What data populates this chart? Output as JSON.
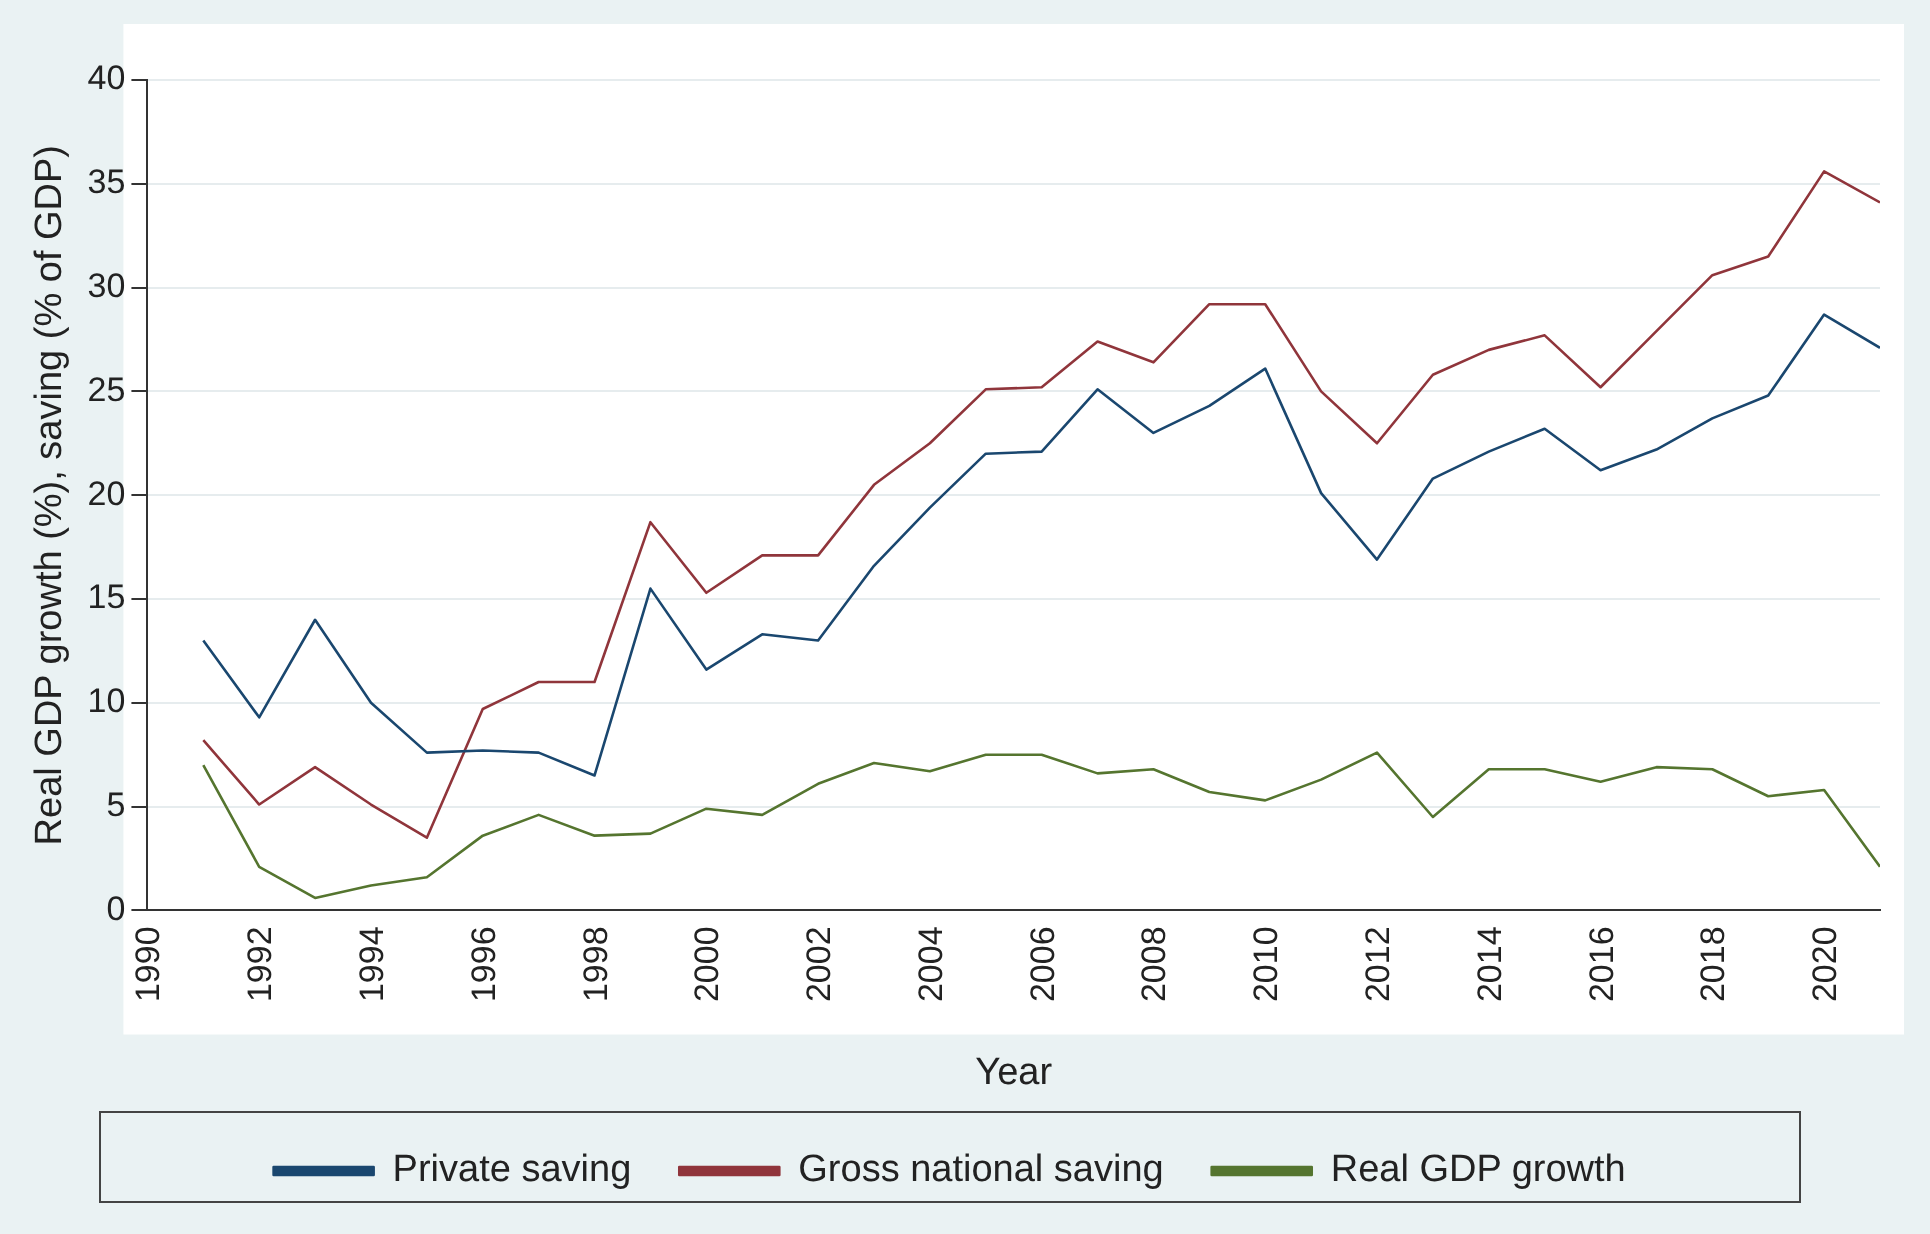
{
  "chart_data": {
    "type": "line",
    "xlabel": "Year",
    "ylabel": "Real GDP growth (%), saving (% of GDP)",
    "x": [
      1991,
      1992,
      1993,
      1994,
      1995,
      1996,
      1997,
      1998,
      1999,
      2000,
      2001,
      2002,
      2003,
      2004,
      2005,
      2006,
      2007,
      2008,
      2009,
      2010,
      2011,
      2012,
      2013,
      2014,
      2015,
      2016,
      2017,
      2018,
      2019,
      2020,
      2021
    ],
    "series": [
      {
        "name": "Private saving",
        "color": "#1a476f",
        "values": [
          13.0,
          9.3,
          14.0,
          10.0,
          7.6,
          7.7,
          7.6,
          6.5,
          15.5,
          11.6,
          13.3,
          13.0,
          16.6,
          19.4,
          22.0,
          22.1,
          25.1,
          23.0,
          24.3,
          26.1,
          20.1,
          16.9,
          20.8,
          22.1,
          23.2,
          21.2,
          22.2,
          23.7,
          24.8,
          28.7,
          27.1
        ]
      },
      {
        "name": "Gross national saving",
        "color": "#90353b",
        "values": [
          8.2,
          5.1,
          6.9,
          5.1,
          3.5,
          9.7,
          11.0,
          11.0,
          18.7,
          15.3,
          17.1,
          17.1,
          20.5,
          22.5,
          25.1,
          25.2,
          27.4,
          26.4,
          29.2,
          29.2,
          25.0,
          22.5,
          25.8,
          27.0,
          27.7,
          25.2,
          27.9,
          30.6,
          31.5,
          35.6,
          34.1
        ]
      },
      {
        "name": "Real GDP growth",
        "color": "#55752f",
        "values": [
          7.0,
          2.1,
          0.6,
          1.2,
          1.6,
          3.6,
          4.6,
          3.6,
          3.7,
          4.9,
          4.6,
          6.1,
          7.1,
          6.7,
          7.5,
          7.5,
          6.6,
          6.8,
          5.7,
          5.3,
          6.3,
          7.6,
          4.5,
          6.8,
          6.8,
          6.2,
          6.9,
          6.8,
          5.5,
          5.8,
          2.1
        ]
      }
    ],
    "xlim": [
      1990,
      2021
    ],
    "xticks": [
      1990,
      1992,
      1994,
      1996,
      1998,
      2000,
      2002,
      2004,
      2006,
      2008,
      2010,
      2012,
      2014,
      2016,
      2018,
      2020
    ],
    "ylim": [
      0,
      40
    ],
    "yticks": [
      0,
      5,
      10,
      15,
      20,
      25,
      30,
      35,
      40
    ],
    "grid": "y",
    "legend": "bottom",
    "marker": "none",
    "line_style": "solid"
  }
}
